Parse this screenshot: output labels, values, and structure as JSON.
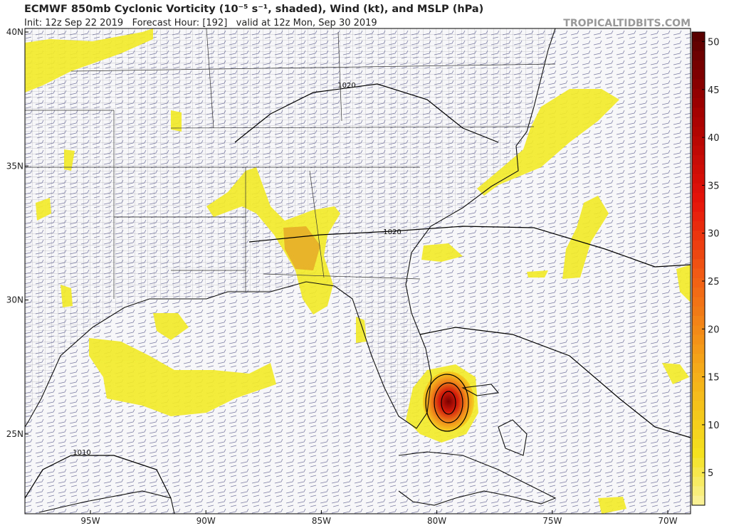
{
  "header": {
    "title": "ECMWF 850mb Cyclonic Vorticity (10⁻⁵ s⁻¹, shaded), Wind (kt), and MSLP (hPa)",
    "subtitle": "Init: 12z Sep 22 2019   Forecast Hour: [192]   valid at 12z Mon, Sep 30 2019",
    "watermark": "TROPICALTIDBITS.COM"
  },
  "map": {
    "lat_labels": [
      "40N",
      "35N",
      "30N",
      "25N"
    ],
    "lon_labels": [
      "95W",
      "90W",
      "85W",
      "80W",
      "75W",
      "70W"
    ],
    "isobar_labels": [
      "1020",
      "1020",
      "1010"
    ]
  },
  "colorbar": {
    "range": [
      1.6,
      51
    ],
    "ticks": [
      5,
      10,
      15,
      20,
      25,
      30,
      35,
      40,
      45,
      50
    ]
  }
}
